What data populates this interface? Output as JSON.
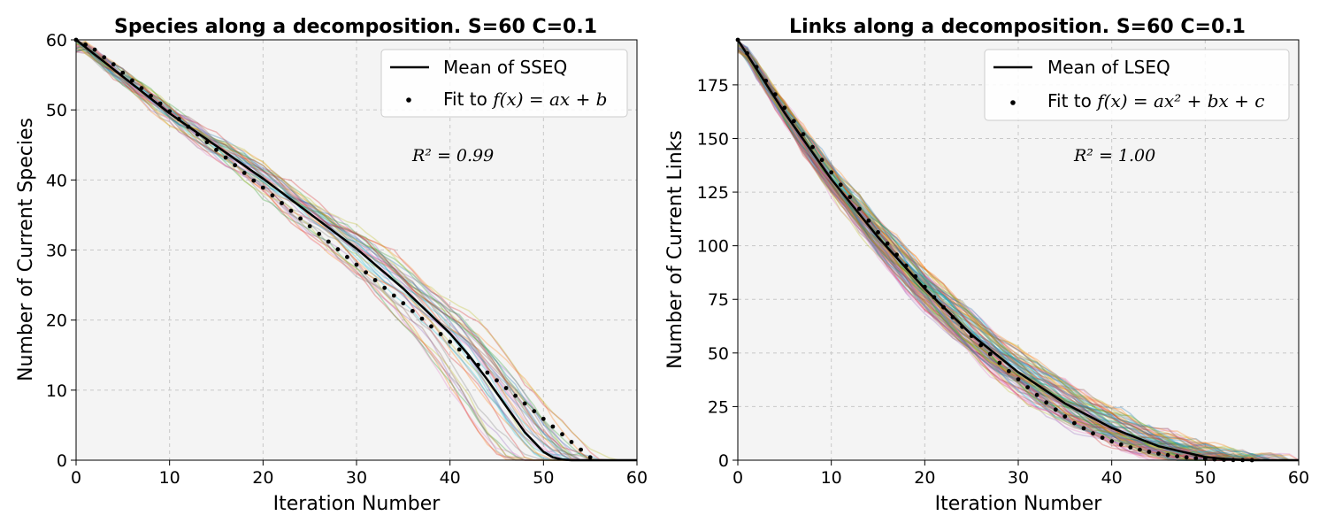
{
  "chart_data": [
    {
      "type": "line",
      "title": "Species along a decomposition. S=60 C=0.1",
      "xlabel": "Iteration Number",
      "ylabel": "Number of Current Species",
      "xlim": [
        0,
        60
      ],
      "ylim": [
        0,
        60
      ],
      "xticks": [
        0,
        10,
        20,
        30,
        40,
        50,
        60
      ],
      "yticks": [
        0,
        10,
        20,
        30,
        40,
        50,
        60
      ],
      "grid": true,
      "legend_position": "top-right",
      "legend": [
        {
          "label": "Mean of SSEQ",
          "marker": "line"
        },
        {
          "label_prefix": "Fit to ",
          "label_math": "f(x) = ax + b",
          "marker": "dot"
        }
      ],
      "annotation": "R² = 0.99",
      "series": [
        {
          "name": "Mean of SSEQ",
          "color": "#000000",
          "x": [
            0,
            10,
            20,
            30,
            35,
            40,
            42,
            44,
            46,
            48,
            50,
            51,
            52,
            53,
            54,
            55,
            56,
            57,
            58,
            59,
            60
          ],
          "y": [
            60,
            49.5,
            40.2,
            30.2,
            24.5,
            18.1,
            15.0,
            11.5,
            7.7,
            4.0,
            1.2,
            0.4,
            0.1,
            0,
            0,
            0,
            0,
            0,
            0,
            0,
            0
          ]
        },
        {
          "name": "Fit to f(x) = ax + b",
          "style": "dots",
          "color": "#000000",
          "x": [
            0,
            1,
            2,
            3,
            4,
            5,
            6,
            7,
            8,
            9,
            10,
            11,
            12,
            13,
            14,
            15,
            16,
            17,
            18,
            19,
            20,
            21,
            22,
            23,
            24,
            25,
            26,
            27,
            28,
            29,
            30,
            31,
            32,
            33,
            34,
            35,
            36,
            37,
            38,
            39,
            40,
            41,
            42,
            43,
            44,
            45,
            46,
            47,
            48,
            49,
            50,
            51,
            52,
            53,
            54,
            55
          ],
          "y": [
            60,
            59.3,
            58.6,
            57.5,
            56.5,
            55.3,
            54.2,
            53.1,
            52.0,
            50.9,
            49.8,
            48.7,
            47.6,
            46.5,
            45.4,
            44.3,
            43.2,
            42.1,
            41.0,
            39.9,
            38.9,
            37.8,
            36.7,
            35.6,
            34.5,
            33.4,
            32.3,
            31.2,
            30.1,
            29.0,
            27.9,
            26.8,
            25.7,
            24.6,
            23.5,
            22.4,
            21.3,
            20.2,
            19.1,
            18.0,
            16.9,
            15.8,
            14.7,
            13.6,
            12.5,
            11.4,
            10.3,
            9.2,
            8.1,
            7.0,
            5.9,
            4.8,
            3.7,
            2.6,
            1.5,
            0.4
          ]
        }
      ],
      "envelope_lines": 40,
      "envelope_palette": [
        "#1f77b4",
        "#ff7f0e",
        "#2ca02c",
        "#d62728",
        "#9467bd",
        "#8c564b",
        "#e377c2",
        "#7f7f7f",
        "#bcbd22",
        "#17becf"
      ]
    },
    {
      "type": "line",
      "title": "Links along a decomposition. S=60 C=0.1",
      "xlabel": "Iteration Number",
      "ylabel": "Number of Current Links",
      "xlim": [
        0,
        60
      ],
      "ylim": [
        0,
        196
      ],
      "xticks": [
        0,
        10,
        20,
        30,
        40,
        50,
        60
      ],
      "yticks": [
        0,
        25,
        50,
        75,
        100,
        125,
        150,
        175
      ],
      "grid": true,
      "legend_position": "top-right",
      "legend": [
        {
          "label": "Mean of LSEQ",
          "marker": "line"
        },
        {
          "label_prefix": "Fit to ",
          "label_math": "f(x) = ax² + bx + c",
          "marker": "dot"
        }
      ],
      "annotation": "R² = 1.00",
      "series": [
        {
          "name": "Mean of LSEQ",
          "color": "#000000",
          "x": [
            0,
            5,
            10,
            15,
            20,
            25,
            30,
            35,
            40,
            45,
            50,
            52,
            54,
            55,
            56,
            58,
            60
          ],
          "y": [
            196,
            162,
            131,
            104,
            80,
            58.5,
            41,
            26.5,
            15,
            6.5,
            1.5,
            0.6,
            0.1,
            0,
            0,
            0,
            0
          ]
        },
        {
          "name": "Fit to f(x) = ax² + bx + c",
          "style": "dots",
          "color": "#000000",
          "x": [
            0,
            1,
            2,
            3,
            4,
            5,
            6,
            7,
            8,
            9,
            10,
            11,
            12,
            13,
            14,
            15,
            16,
            17,
            18,
            19,
            20,
            21,
            22,
            23,
            24,
            25,
            26,
            27,
            28,
            29,
            30,
            31,
            32,
            33,
            34,
            35,
            36,
            37,
            38,
            39,
            40,
            41,
            42,
            43,
            44,
            45,
            46,
            47,
            48,
            49,
            50,
            51,
            52,
            53,
            54,
            55
          ],
          "y": [
            196,
            189.7,
            183.3,
            176.9,
            170.6,
            164.3,
            158.1,
            152.0,
            146.0,
            140.0,
            134.2,
            128.4,
            122.7,
            117.2,
            111.7,
            106.3,
            101.0,
            95.8,
            90.7,
            85.7,
            80.8,
            76.0,
            71.3,
            66.7,
            62.2,
            57.9,
            53.6,
            49.5,
            45.4,
            41.5,
            37.7,
            34.0,
            30.4,
            26.9,
            23.6,
            20.4,
            17.3,
            14.9,
            12.5,
            10.5,
            8.8,
            7.3,
            6.0,
            4.9,
            3.9,
            3.1,
            2.4,
            1.8,
            1.3,
            0.9,
            0.6,
            0.4,
            0.2,
            0.1,
            0.05,
            0
          ]
        }
      ],
      "envelope_lines": 100,
      "envelope_palette": [
        "#1f77b4",
        "#ff7f0e",
        "#2ca02c",
        "#d62728",
        "#9467bd",
        "#8c564b",
        "#e377c2",
        "#7f7f7f",
        "#bcbd22",
        "#17becf"
      ]
    }
  ]
}
